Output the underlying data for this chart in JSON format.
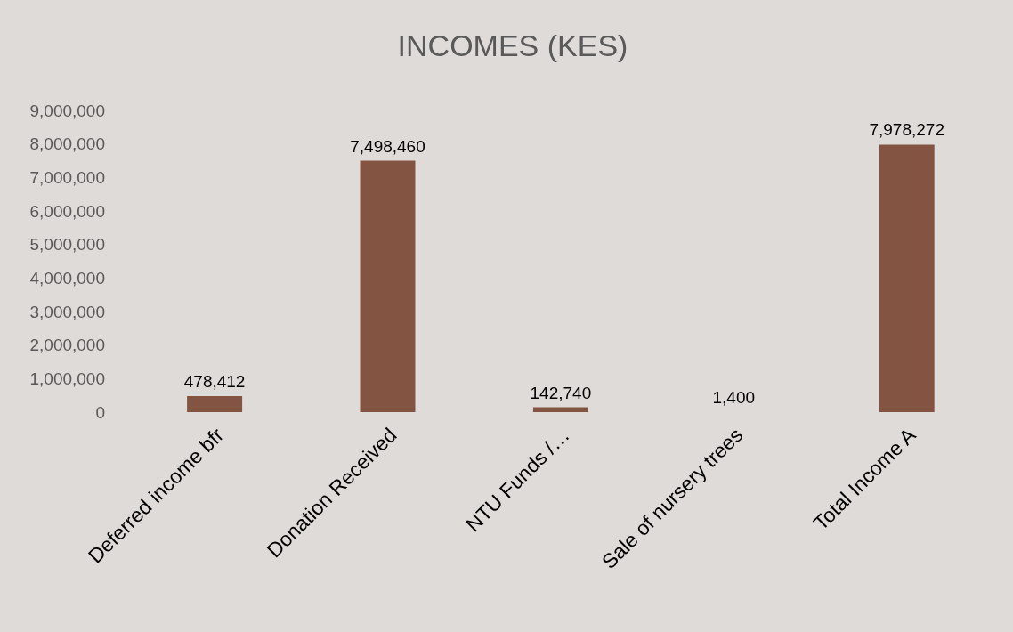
{
  "chart_data": {
    "type": "bar",
    "title": "INCOMES (KES)",
    "categories": [
      "Deferred income bfr",
      "Donation Received",
      "NTU Funds /…",
      "Sale of nursery trees",
      "Total Income A"
    ],
    "values": [
      478412,
      7498460,
      142740,
      1400,
      7978272
    ],
    "value_labels": [
      "478,412",
      "7,498,460",
      "142,740",
      "1,400",
      "7,978,272"
    ],
    "color": "#845442",
    "ylim": [
      0,
      9000000
    ],
    "yticks": [
      0,
      {
        "value": 1000000,
        "label": "1,000,000"
      },
      {
        "value": 2000000,
        "label": "2,000,000"
      },
      {
        "value": 3000000,
        "label": "3,000,000"
      },
      {
        "value": 4000000,
        "label": "4,000,000"
      },
      {
        "value": 5000000,
        "label": "5,000,000"
      },
      {
        "value": 6000000,
        "label": "6,000,000"
      },
      {
        "value": 7000000,
        "label": "7,000,000"
      },
      {
        "value": 8000000,
        "label": "8,000,000"
      },
      {
        "value": 9000000,
        "label": "9,000,000"
      }
    ]
  }
}
